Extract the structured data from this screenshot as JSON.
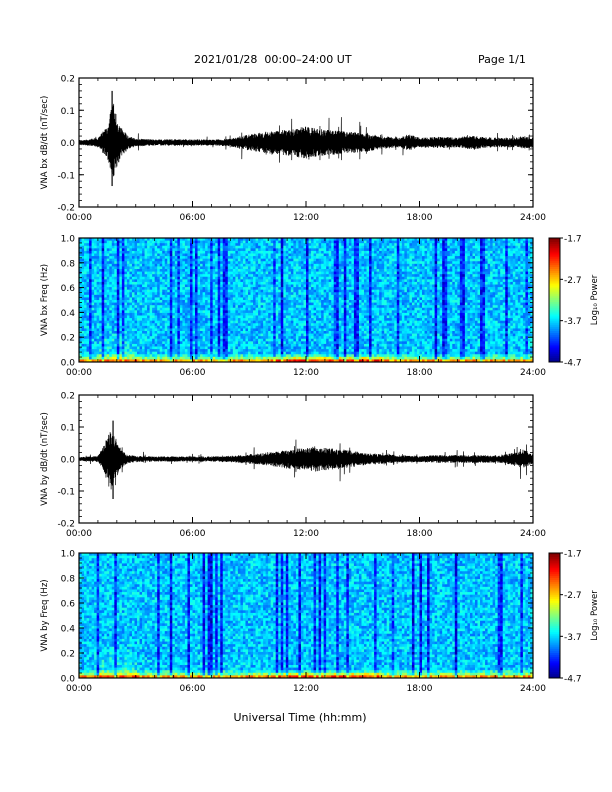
{
  "header": {
    "title": "2021/01/28  00:00–24:00 UT",
    "page": "Page 1/1"
  },
  "bottom_xlabel": "Universal Time (hh:mm)",
  "chart_data": [
    {
      "type": "line",
      "ylabel": "VNA bx dB/dt (nT/sec)",
      "xlabel": "",
      "xlim": [
        0,
        24
      ],
      "ylim": [
        -0.2,
        0.2
      ],
      "x_ticks": [
        "00:00",
        "06:00",
        "12:00",
        "18:00",
        "24:00"
      ],
      "y_ticks": [
        "0.2",
        "0.1",
        "0.0",
        "-0.1",
        "-0.2"
      ],
      "envelope_hours": [
        0,
        0.5,
        1.0,
        1.5,
        1.8,
        1.95,
        2.2,
        2.6,
        3,
        4,
        5,
        6,
        7,
        8,
        8.5,
        9,
        10,
        11,
        11.5,
        12,
        12.5,
        13,
        14,
        15,
        16,
        17,
        17.5,
        18,
        19,
        20,
        20.5,
        21,
        22,
        23,
        23.5,
        24
      ],
      "envelope_amp": [
        0.008,
        0.01,
        0.015,
        0.05,
        0.13,
        0.09,
        0.05,
        0.02,
        0.012,
        0.01,
        0.01,
        0.01,
        0.009,
        0.012,
        0.02,
        0.025,
        0.035,
        0.04,
        0.045,
        0.05,
        0.045,
        0.04,
        0.035,
        0.03,
        0.02,
        0.015,
        0.025,
        0.015,
        0.018,
        0.015,
        0.02,
        0.02,
        0.015,
        0.015,
        0.02,
        0.015
      ],
      "spikes": [
        {
          "x": 1.75,
          "max": 0.16,
          "min": -0.135
        }
      ]
    },
    {
      "type": "heatmap",
      "ylabel": "VNA bx Freq (Hz)",
      "xlim": [
        0,
        24
      ],
      "ylim": [
        0,
        1.0
      ],
      "x_ticks": [
        "00:00",
        "06:00",
        "12:00",
        "18:00",
        "24:00"
      ],
      "y_ticks": [
        "1.0",
        "0.8",
        "0.6",
        "0.4",
        "0.2",
        "0.0"
      ],
      "colorbar": {
        "label": "Log₁₀ Power",
        "ticks": [
          "-1.7",
          "-2.7",
          "-3.7",
          "-4.7"
        ],
        "range": [
          -4.7,
          -1.7
        ]
      }
    },
    {
      "type": "line",
      "ylabel": "VNA by dB/dt (nT/sec)",
      "xlabel": "",
      "xlim": [
        0,
        24
      ],
      "ylim": [
        -0.2,
        0.2
      ],
      "x_ticks": [
        "00:00",
        "06:00",
        "12:00",
        "18:00",
        "24:00"
      ],
      "y_ticks": [
        "0.2",
        "0.1",
        "0.0",
        "-0.1",
        "-0.2"
      ],
      "envelope_hours": [
        0,
        0.5,
        1.0,
        1.4,
        1.7,
        1.85,
        2.1,
        2.5,
        3,
        4,
        5,
        6,
        7,
        8,
        9,
        10,
        11,
        12,
        12.5,
        13,
        14,
        15,
        16,
        17,
        18,
        19,
        20,
        21,
        22,
        22.5,
        23,
        23.5,
        24
      ],
      "envelope_amp": [
        0.006,
        0.008,
        0.01,
        0.05,
        0.1,
        0.08,
        0.04,
        0.015,
        0.01,
        0.008,
        0.008,
        0.008,
        0.008,
        0.01,
        0.015,
        0.02,
        0.03,
        0.035,
        0.04,
        0.035,
        0.03,
        0.02,
        0.015,
        0.012,
        0.01,
        0.012,
        0.012,
        0.012,
        0.012,
        0.015,
        0.02,
        0.03,
        0.015
      ],
      "spikes": [
        {
          "x": 1.8,
          "max": 0.12,
          "min": -0.125
        }
      ]
    },
    {
      "type": "heatmap",
      "ylabel": "VNA by Freq (Hz)",
      "xlim": [
        0,
        24
      ],
      "ylim": [
        0,
        1.0
      ],
      "x_ticks": [
        "00:00",
        "06:00",
        "12:00",
        "18:00",
        "24:00"
      ],
      "y_ticks": [
        "1.0",
        "0.8",
        "0.6",
        "0.4",
        "0.2",
        "0.0"
      ],
      "colorbar": {
        "label": "Log₁₀ Power",
        "ticks": [
          "-1.7",
          "-2.7",
          "-3.7",
          "-4.7"
        ],
        "range": [
          -4.7,
          -1.7
        ]
      }
    }
  ]
}
